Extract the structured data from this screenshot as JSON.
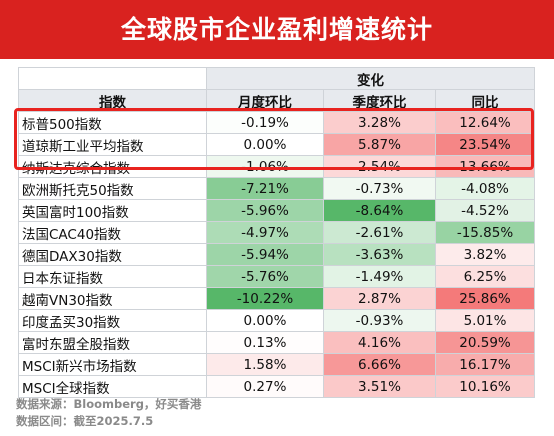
{
  "banner_title": "全球股市企业盈利增速统计",
  "colors": {
    "banner": "#d9221f",
    "highlight_border": "#e8231f",
    "positive_max": "#f47a7a",
    "negative_max": "#57b769",
    "neutral": "#ffffff",
    "header_bg": "#e7eaee"
  },
  "chart_data": {
    "type": "table",
    "title": "全球股市企业盈利增速统计",
    "group_header": "变化",
    "columns": [
      "指数",
      "月度环比",
      "季度环比",
      "同比"
    ],
    "unit": "%",
    "rows": [
      {
        "name": "标普500指数",
        "values": [
          -0.19,
          3.28,
          12.64
        ],
        "labels": [
          "-0.19%",
          "3.28%",
          "12.64%"
        ]
      },
      {
        "name": "道琼斯工业平均指数",
        "values": [
          0.0,
          5.87,
          23.54
        ],
        "labels": [
          "0.00%",
          "5.87%",
          "23.54%"
        ]
      },
      {
        "name": "纳斯达克综合指数",
        "values": [
          -1.06,
          2.54,
          13.66
        ],
        "labels": [
          "-1.06%",
          "2.54%",
          "13.66%"
        ]
      },
      {
        "name": "欧洲斯托克50指数",
        "values": [
          -7.21,
          -0.73,
          -4.08
        ],
        "labels": [
          "-7.21%",
          "-0.73%",
          "-4.08%"
        ]
      },
      {
        "name": "英国富时100指数",
        "values": [
          -5.96,
          -8.64,
          -4.52
        ],
        "labels": [
          "-5.96%",
          "-8.64%",
          "-4.52%"
        ]
      },
      {
        "name": "法国CAC40指数",
        "values": [
          -4.97,
          -2.61,
          -15.85
        ],
        "labels": [
          "-4.97%",
          "-2.61%",
          "-15.85%"
        ]
      },
      {
        "name": "德国DAX30指数",
        "values": [
          -5.94,
          -3.63,
          3.82
        ],
        "labels": [
          "-5.94%",
          "-3.63%",
          "3.82%"
        ]
      },
      {
        "name": "日本东证指数",
        "values": [
          -5.76,
          -1.49,
          6.25
        ],
        "labels": [
          "-5.76%",
          "-1.49%",
          "6.25%"
        ]
      },
      {
        "name": "越南VN30指数",
        "values": [
          -10.22,
          2.87,
          25.86
        ],
        "labels": [
          "-10.22%",
          "2.87%",
          "25.86%"
        ]
      },
      {
        "name": "印度孟买30指数",
        "values": [
          0.0,
          -0.93,
          5.01
        ],
        "labels": [
          "0.00%",
          "-0.93%",
          "5.01%"
        ]
      },
      {
        "name": "富时东盟全股指数",
        "values": [
          0.13,
          4.16,
          20.59
        ],
        "labels": [
          "0.13%",
          "4.16%",
          "20.59%"
        ]
      },
      {
        "name": "MSCI新兴市场指数",
        "values": [
          1.58,
          6.66,
          16.17
        ],
        "labels": [
          "1.58%",
          "6.66%",
          "16.17%"
        ]
      },
      {
        "name": "MSCI全球指数",
        "values": [
          0.27,
          3.51,
          10.16
        ],
        "labels": [
          "0.27%",
          "3.51%",
          "10.16%"
        ]
      }
    ],
    "highlighted_rows": [
      "标普500指数",
      "道琼斯工业平均指数",
      "纳斯达克综合指数"
    ]
  },
  "footnotes": {
    "source": "数据来源：Bloomberg，好买香港",
    "period": "数据区间：截至2025.7.5"
  }
}
